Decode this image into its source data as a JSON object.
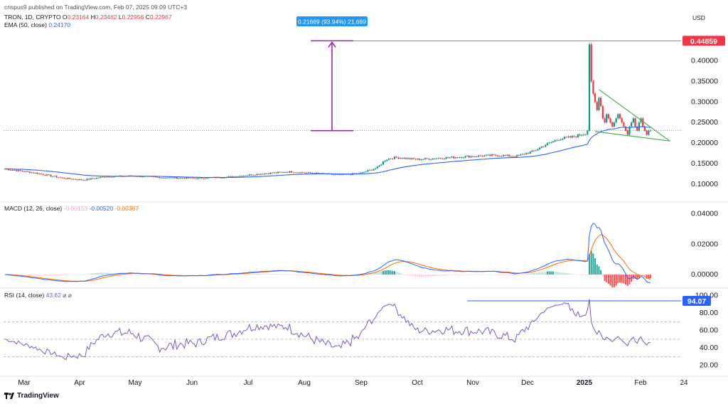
{
  "header": {
    "published": "crispus9 published on TradingView.com, Feb 07, 2025 09:09 UTC+3",
    "symbol": "TRON, 1D, CRYPTO",
    "ohlc": {
      "o": "0.23164",
      "h": "0.23462",
      "l": "0.22956",
      "c": "0.22967"
    },
    "ema_label": "EMA (50, close)",
    "ema_value": "0.24170",
    "currency": "USD"
  },
  "price_panel": {
    "y_ticks": [
      "0.40000",
      "0.35000",
      "0.30000",
      "0.25000",
      "0.20000",
      "0.15000",
      "0.10000"
    ],
    "high_label": "0.44859",
    "measure_label": "0.21669 (93.94%) 21,669",
    "ylim": [
      0.06,
      0.47
    ]
  },
  "macd_panel": {
    "label": "MACD (12, 26, close)",
    "values": [
      "-0.00153",
      "-0.00520",
      "-0.00367"
    ],
    "y_ticks": [
      "0.04000",
      "0.02000",
      "0.00000"
    ],
    "ylim": [
      -0.0075,
      0.045
    ]
  },
  "rsi_panel": {
    "label": "RSI (14, close)",
    "value": "43.62",
    "sym1": "⌀",
    "sym2": "⌀",
    "y_ticks": [
      "100.00",
      "80.00",
      "60.00",
      "40.00",
      "20.00"
    ],
    "max_label": "94.07",
    "ylim": [
      10,
      103
    ]
  },
  "x_axis": {
    "labels": [
      "Mar",
      "Apr",
      "May",
      "Jun",
      "Jul",
      "Aug",
      "Sep",
      "Oct",
      "Nov",
      "Dec",
      "2025",
      "Feb",
      "24"
    ]
  },
  "footer": {
    "brand": "TradingView"
  },
  "colors": {
    "up": "#089981",
    "down": "#f23645",
    "ema": "#2962ff",
    "macd": "#2962ff",
    "signal": "#ff6d00",
    "rsi": "#7e57c2",
    "wedge": "#4caf50",
    "measure": "#9c27b0"
  },
  "chart_data": [
    {
      "type": "line",
      "title": "TRON, 1D, CRYPTO",
      "note_type": "candlestick",
      "x": [
        "Mar",
        "Apr",
        "May",
        "Jun",
        "Jul",
        "Aug",
        "Sep",
        "Oct",
        "Nov",
        "Dec",
        "2025",
        "Feb"
      ],
      "series": [
        {
          "name": "Close",
          "values": [
            0.137,
            0.118,
            0.12,
            0.115,
            0.125,
            0.123,
            0.15,
            0.16,
            0.16,
            0.2,
            0.25,
            0.23
          ]
        },
        {
          "name": "EMA (50, close)",
          "values": [
            0.13,
            0.124,
            0.122,
            0.118,
            0.12,
            0.124,
            0.138,
            0.152,
            0.158,
            0.175,
            0.245,
            0.2417
          ]
        }
      ],
      "ylim": [
        0.06,
        0.47
      ]
    },
    {
      "type": "line",
      "title": "MACD (12, 26, close)",
      "x": [
        "Mar",
        "Apr",
        "May",
        "Jun",
        "Jul",
        "Aug",
        "Sep",
        "Oct",
        "Nov",
        "Dec",
        "2025",
        "Feb"
      ],
      "series": [
        {
          "name": "MACD",
          "values": [
            0.002,
            -0.001,
            -0.0005,
            -0.0008,
            0.001,
            0.001,
            0.002,
            0.001,
            0.0005,
            0.038,
            0.0005,
            -0.0052
          ]
        },
        {
          "name": "Signal",
          "values": [
            0.002,
            -0.0005,
            -0.0003,
            -0.0006,
            0.0008,
            0.0008,
            0.0015,
            0.001,
            0.001,
            0.03,
            0.001,
            -0.0037
          ]
        }
      ],
      "ylim": [
        -0.0075,
        0.045
      ]
    },
    {
      "type": "line",
      "title": "RSI (14, close)",
      "x": [
        "Mar",
        "Apr",
        "May",
        "Jun",
        "Jul",
        "Aug",
        "Sep",
        "Oct",
        "Nov",
        "Dec",
        "2025",
        "Feb"
      ],
      "series": [
        {
          "name": "RSI",
          "values": [
            72,
            38,
            55,
            42,
            60,
            50,
            70,
            55,
            60,
            94.07,
            48,
            43.62
          ]
        }
      ],
      "ylim": [
        10,
        103
      ]
    }
  ]
}
